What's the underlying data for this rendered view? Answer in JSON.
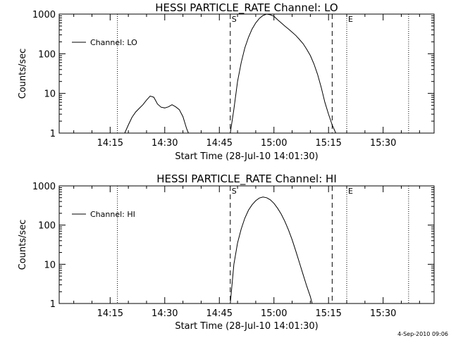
{
  "chart_data": [
    {
      "type": "line",
      "title": "HESSI PARTICLE_RATE Channel: LO",
      "xlabel": "Start Time (28-Jul-10 14:01:30)",
      "ylabel": "Counts/sec",
      "y_scale": "log",
      "ylim": [
        1,
        1000
      ],
      "xlim": [
        "14:01:30",
        "15:44:00"
      ],
      "x_ticks": [
        "14:15",
        "14:30",
        "14:45",
        "15:00",
        "15:15",
        "15:30"
      ],
      "y_ticks": [
        "1",
        "10",
        "100",
        "1000"
      ],
      "grid": false,
      "legend": {
        "position": "top-left",
        "entries": [
          "Channel: LO"
        ]
      },
      "vertical_markers": [
        {
          "time": "14:17",
          "style": "dotted",
          "label": ""
        },
        {
          "time": "14:48",
          "style": "dashed",
          "label": "S"
        },
        {
          "time": "15:16",
          "style": "dashed",
          "label": ""
        },
        {
          "time": "15:20",
          "style": "dotted",
          "label": "E"
        },
        {
          "time": "15:37",
          "style": "dotted",
          "label": ""
        }
      ],
      "series": [
        {
          "name": "Channel: LO",
          "segments": [
            [
              [
                "14:19",
                1
              ],
              [
                "14:20",
                1.6
              ],
              [
                "14:21",
                2.5
              ],
              [
                "14:22",
                3.4
              ],
              [
                "14:23",
                4.2
              ],
              [
                "14:24",
                5.2
              ],
              [
                "14:25",
                6.8
              ],
              [
                "14:26",
                8.6
              ],
              [
                "14:27",
                8.0
              ],
              [
                "14:28",
                5.4
              ],
              [
                "14:29",
                4.5
              ],
              [
                "14:30",
                4.3
              ],
              [
                "14:31",
                4.6
              ],
              [
                "14:32",
                5.2
              ],
              [
                "14:33",
                4.6
              ],
              [
                "14:34",
                3.9
              ],
              [
                "14:35",
                2.6
              ],
              [
                "14:36",
                1.3
              ],
              [
                "14:36.5",
                1
              ]
            ],
            [
              [
                "14:48",
                1
              ],
              [
                "14:49",
                4
              ],
              [
                "14:50",
                20
              ],
              [
                "14:51",
                60
              ],
              [
                "14:52",
                140
              ],
              [
                "14:53",
                260
              ],
              [
                "14:54",
                420
              ],
              [
                "14:55",
                600
              ],
              [
                "14:56",
                780
              ],
              [
                "14:57",
                920
              ],
              [
                "14:58",
                1000
              ],
              [
                "14:59",
                960
              ],
              [
                "15:00",
                880
              ],
              [
                "15:01",
                720
              ],
              [
                "15:02",
                600
              ],
              [
                "15:03",
                500
              ],
              [
                "15:04",
                420
              ],
              [
                "15:05",
                350
              ],
              [
                "15:06",
                290
              ],
              [
                "15:07",
                230
              ],
              [
                "15:08",
                180
              ],
              [
                "15:09",
                130
              ],
              [
                "15:10",
                90
              ],
              [
                "15:11",
                55
              ],
              [
                "15:12",
                30
              ],
              [
                "15:13",
                14
              ],
              [
                "15:14",
                6
              ],
              [
                "15:15",
                3
              ],
              [
                "15:16",
                1.6
              ],
              [
                "15:17",
                1
              ]
            ]
          ]
        }
      ]
    },
    {
      "type": "line",
      "title": "HESSI PARTICLE_RATE Channel: HI",
      "xlabel": "Start Time (28-Jul-10 14:01:30)",
      "ylabel": "Counts/sec",
      "y_scale": "log",
      "ylim": [
        1,
        1000
      ],
      "xlim": [
        "14:01:30",
        "15:44:00"
      ],
      "x_ticks": [
        "14:15",
        "14:30",
        "14:45",
        "15:00",
        "15:15",
        "15:30"
      ],
      "y_ticks": [
        "1",
        "10",
        "100",
        "1000"
      ],
      "grid": false,
      "legend": {
        "position": "top-left",
        "entries": [
          "Channel: HI"
        ]
      },
      "vertical_markers": [
        {
          "time": "14:17",
          "style": "dotted",
          "label": ""
        },
        {
          "time": "14:48",
          "style": "dashed",
          "label": "S"
        },
        {
          "time": "15:16",
          "style": "dashed",
          "label": ""
        },
        {
          "time": "15:20",
          "style": "dotted",
          "label": "E"
        },
        {
          "time": "15:37",
          "style": "dotted",
          "label": ""
        }
      ],
      "series": [
        {
          "name": "Channel: HI",
          "segments": [
            [
              [
                "14:48",
                1
              ],
              [
                "14:49",
                10
              ],
              [
                "14:50",
                35
              ],
              [
                "14:51",
                80
              ],
              [
                "14:52",
                150
              ],
              [
                "14:53",
                240
              ],
              [
                "14:54",
                330
              ],
              [
                "14:55",
                420
              ],
              [
                "14:56",
                490
              ],
              [
                "14:57",
                520
              ],
              [
                "14:58",
                500
              ],
              [
                "14:59",
                440
              ],
              [
                "15:00",
                360
              ],
              [
                "15:01",
                270
              ],
              [
                "15:02",
                190
              ],
              [
                "15:03",
                125
              ],
              [
                "15:04",
                75
              ],
              [
                "15:05",
                42
              ],
              [
                "15:06",
                22
              ],
              [
                "15:07",
                11
              ],
              [
                "15:08",
                5.5
              ],
              [
                "15:09",
                2.8
              ],
              [
                "15:10",
                1.5
              ],
              [
                "15:10.5",
                1
              ]
            ]
          ]
        }
      ]
    }
  ],
  "footer": {
    "timestamp": "4-Sep-2010 09:06"
  }
}
